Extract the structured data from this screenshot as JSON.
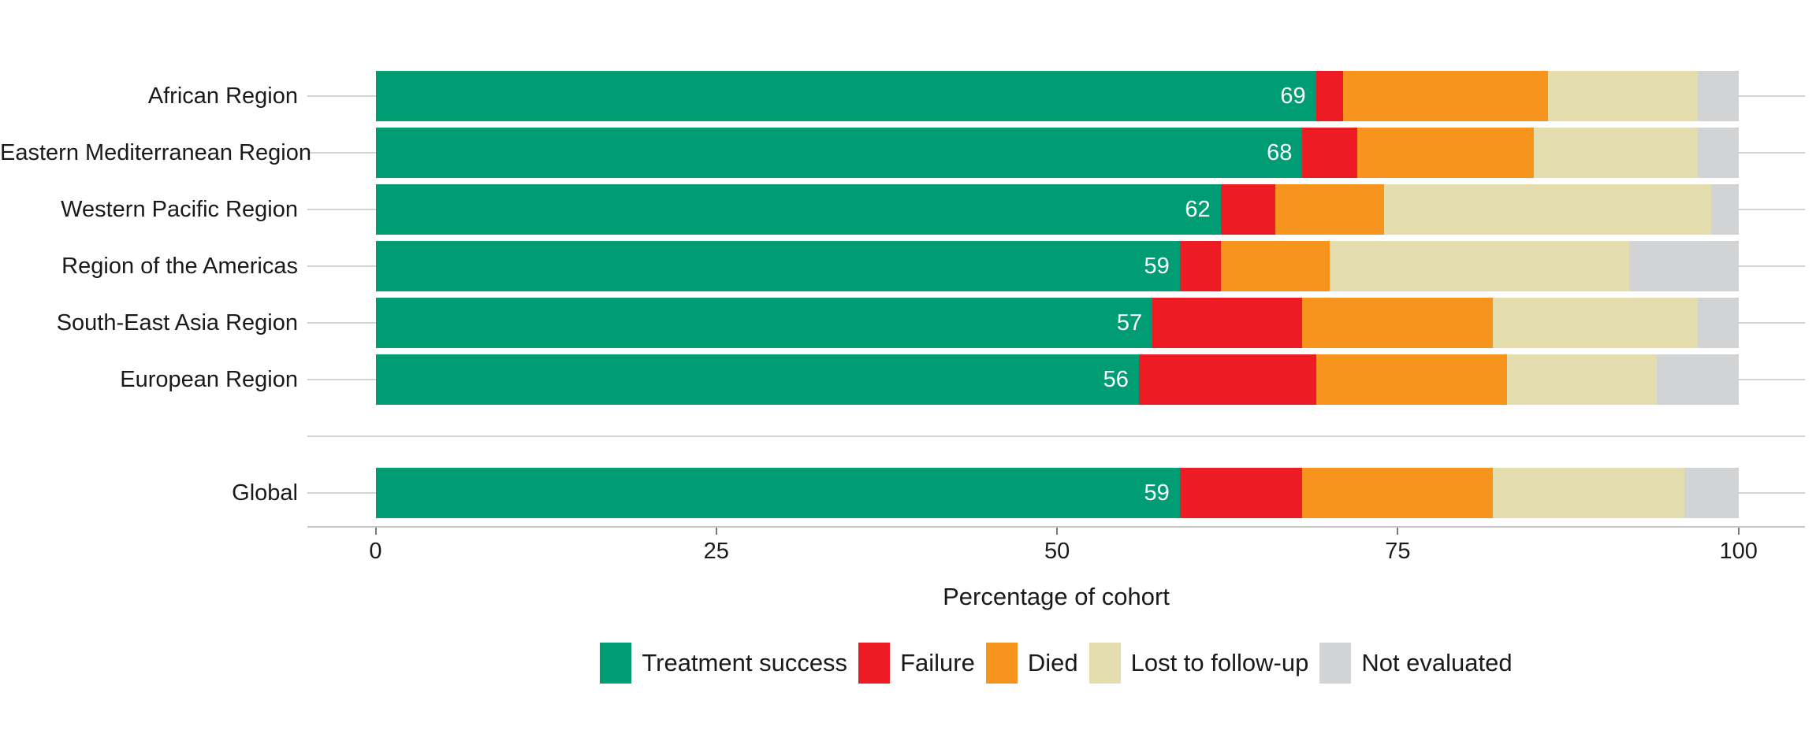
{
  "chart_data": {
    "type": "bar",
    "orientation": "horizontal",
    "stacked": true,
    "title": "",
    "xlabel": "Percentage of cohort",
    "ylabel": "",
    "xlim": [
      0,
      100
    ],
    "x_ticks": [
      0,
      25,
      50,
      75,
      100
    ],
    "grid": "horizontal category gridlines, light gray",
    "legend_position": "bottom",
    "series": [
      {
        "name": "Treatment success",
        "color": "#009c73"
      },
      {
        "name": "Failure",
        "color": "#ed1c24"
      },
      {
        "name": "Died",
        "color": "#f7941d"
      },
      {
        "name": "Lost to follow-up",
        "color": "#e4ddae"
      },
      {
        "name": "Not evaluated",
        "color": "#d2d3d5"
      }
    ],
    "rows": [
      {
        "label": "African Region",
        "slot": 0,
        "values": [
          69,
          2,
          15,
          11,
          3
        ],
        "value_label": "69"
      },
      {
        "label": "Eastern Mediterranean Region",
        "slot": 1,
        "values": [
          68,
          4,
          13,
          12,
          3
        ],
        "value_label": "68"
      },
      {
        "label": "Western Pacific Region",
        "slot": 2,
        "values": [
          62,
          4,
          8,
          24,
          2
        ],
        "value_label": "62"
      },
      {
        "label": "Region of the Americas",
        "slot": 3,
        "values": [
          59,
          3,
          8,
          22,
          8
        ],
        "value_label": "59"
      },
      {
        "label": "South-East Asia Region",
        "slot": 4,
        "values": [
          57,
          11,
          14,
          15,
          3
        ],
        "value_label": "57"
      },
      {
        "label": "European Region",
        "slot": 5,
        "values": [
          56,
          13,
          14,
          11,
          6
        ],
        "value_label": "56"
      },
      {
        "label": "Global",
        "slot": 7,
        "values": [
          59,
          9,
          14,
          14,
          4
        ],
        "value_label": "59"
      }
    ],
    "value_labels_shown_for": "Treatment success segment only, white text inside bar"
  }
}
